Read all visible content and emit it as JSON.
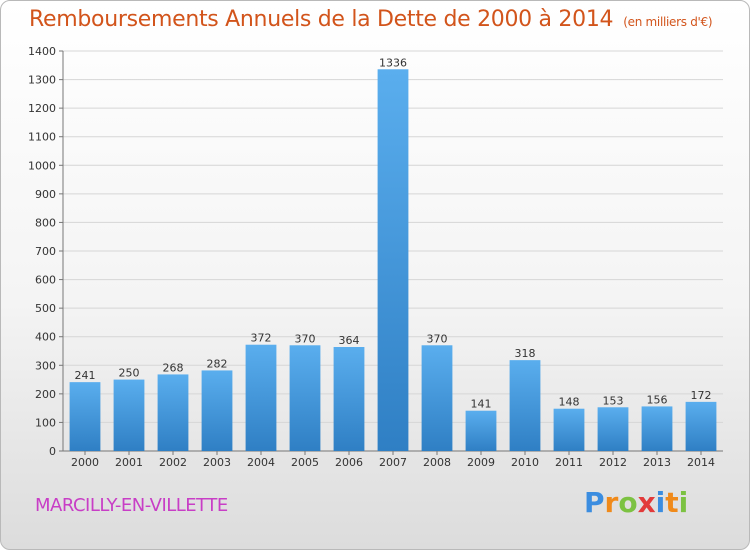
{
  "title": "Remboursements Annuels de la Dette de 2000 à 2014",
  "unit": "(en milliers d'€)",
  "commune": "MARCILLY-EN-VILLETTE",
  "logo": {
    "letters": [
      "P",
      "r",
      "o",
      "x",
      "i",
      "t",
      "i"
    ],
    "colors": [
      "#3b8de0",
      "#f08a1a",
      "#7cc242",
      "#e23a3a",
      "#3b8de0",
      "#f08a1a",
      "#7cc242"
    ]
  },
  "colors": {
    "title": "#d2541b",
    "commune": "#c83ec6",
    "bar_top": "#5aaeee",
    "bar_bottom": "#2f7fc4"
  },
  "chart_data": {
    "type": "bar",
    "categories": [
      "2000",
      "2001",
      "2002",
      "2003",
      "2004",
      "2005",
      "2006",
      "2007",
      "2008",
      "2009",
      "2010",
      "2011",
      "2012",
      "2013",
      "2014"
    ],
    "values": [
      241,
      250,
      268,
      282,
      372,
      370,
      364,
      1336,
      370,
      141,
      318,
      148,
      153,
      156,
      172
    ],
    "ylim": [
      0,
      1400
    ],
    "yticks": [
      0,
      100,
      200,
      300,
      400,
      500,
      600,
      700,
      800,
      900,
      1000,
      1100,
      1200,
      1300,
      1400
    ],
    "grid": true,
    "data_labels": true
  }
}
